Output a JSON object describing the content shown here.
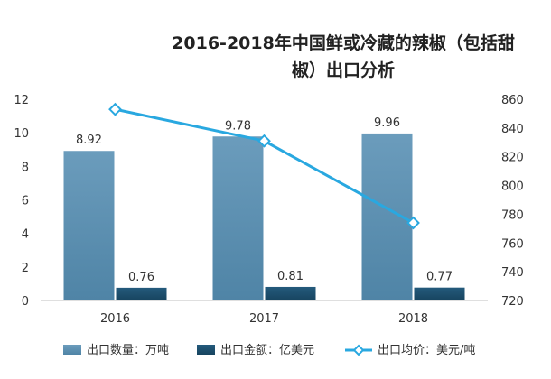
{
  "chart_data": {
    "type": "bar",
    "title": "2016-2018年中国鲜或冷藏的辣椒（包括甜椒）出口分析",
    "title_lines": [
      "2016-2018年中国鲜或冷藏的辣椒（包括甜",
      "椒）出口分析"
    ],
    "categories": [
      "2016",
      "2017",
      "2018"
    ],
    "series": [
      {
        "name": "出口数量：万吨",
        "type": "bar",
        "axis": "left",
        "values": [
          8.92,
          9.78,
          9.96
        ],
        "labels": [
          "8.92",
          "9.78",
          "9.96"
        ],
        "color": "#5b8fb0"
      },
      {
        "name": "出口金额：亿美元",
        "type": "bar",
        "axis": "left",
        "values": [
          0.76,
          0.81,
          0.77
        ],
        "labels": [
          "0.76",
          "0.81",
          "0.77"
        ],
        "color": "#1d4e6e"
      },
      {
        "name": "出口均价：美元/吨",
        "type": "line",
        "axis": "right",
        "values": [
          853,
          831,
          774
        ],
        "color": "#29a8e0"
      }
    ],
    "y_left": {
      "min": 0,
      "max": 12,
      "step": 2,
      "ticks": [
        "0",
        "2",
        "4",
        "6",
        "8",
        "10",
        "12"
      ]
    },
    "y_right": {
      "min": 720,
      "max": 860,
      "step": 20,
      "ticks": [
        "720",
        "740",
        "760",
        "780",
        "800",
        "820",
        "840",
        "860"
      ]
    },
    "grid": false,
    "legend": "bottom"
  }
}
